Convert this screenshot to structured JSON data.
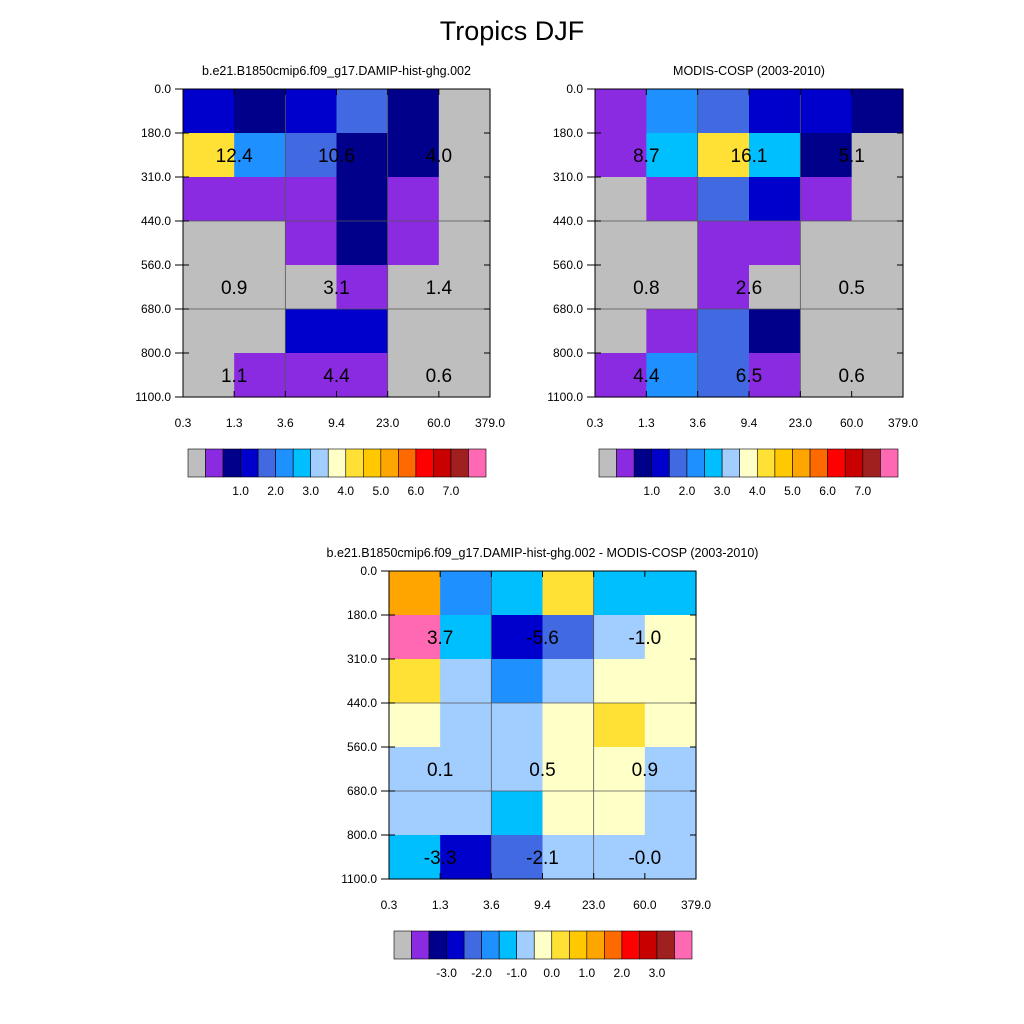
{
  "page": {
    "title": "Tropics DJF"
  },
  "colors": {
    "abs_colorbar": [
      "#bebebe",
      "#8a2be2",
      "#00008b",
      "#0000cd",
      "#4169e1",
      "#1e90ff",
      "#00bfff",
      "#a2cdff",
      "#ffffc8",
      "#ffe135",
      "#ffc800",
      "#ffa500",
      "#ff6a00",
      "#ff0000",
      "#c80000",
      "#a02020",
      "#ff69b4"
    ],
    "diff_colorbar": [
      "#bebebe",
      "#8a2be2",
      "#00008b",
      "#0000cd",
      "#4169e1",
      "#1e90ff",
      "#00bfff",
      "#a2cdff",
      "#ffffc8",
      "#ffe135",
      "#ffc800",
      "#ffa500",
      "#ff6a00",
      "#ff0000",
      "#c80000",
      "#a02020",
      "#ff69b4"
    ]
  },
  "chart_data": [
    {
      "type": "heatmap",
      "id": "model",
      "title": "b.e21.B1850cmip6.f09_g17.DAMIP-hist-ghg.002",
      "xlabel": "",
      "ylabel": "",
      "x_ticks": [
        "0.3",
        "1.3",
        "3.6",
        "9.4",
        "23.0",
        "60.0",
        "379.0"
      ],
      "y_ticks": [
        "0.0",
        "180.0",
        "310.0",
        "440.0",
        "560.0",
        "680.0",
        "800.0",
        "1100.0"
      ],
      "cell_colors": [
        [
          "#0000cd",
          "#00008b",
          "#0000cd",
          "#4169e1",
          "#00008b",
          "#bebebe"
        ],
        [
          "#ffe135",
          "#1e90ff",
          "#4169e1",
          "#00008b",
          "#00008b",
          "#bebebe"
        ],
        [
          "#8a2be2",
          "#8a2be2",
          "#8a2be2",
          "#00008b",
          "#8a2be2",
          "#bebebe"
        ],
        [
          "#bebebe",
          "#bebebe",
          "#8a2be2",
          "#00008b",
          "#8a2be2",
          "#bebebe"
        ],
        [
          "#bebebe",
          "#bebebe",
          "#bebebe",
          "#8a2be2",
          "#bebebe",
          "#bebebe"
        ],
        [
          "#bebebe",
          "#bebebe",
          "#0000cd",
          "#0000cd",
          "#bebebe",
          "#bebebe"
        ],
        [
          "#bebebe",
          "#8a2be2",
          "#8a2be2",
          "#8a2be2",
          "#bebebe",
          "#bebebe"
        ]
      ],
      "annotations": [
        {
          "text": "12.4",
          "col": 0,
          "row": 1
        },
        {
          "text": "10.6",
          "col": 1,
          "row": 1
        },
        {
          "text": "4.0",
          "col": 2,
          "row": 1
        },
        {
          "text": "0.9",
          "col": 0,
          "row": 4
        },
        {
          "text": "3.1",
          "col": 1,
          "row": 4
        },
        {
          "text": "1.4",
          "col": 2,
          "row": 4
        },
        {
          "text": "1.1",
          "col": 0,
          "row": 6
        },
        {
          "text": "4.4",
          "col": 1,
          "row": 6
        },
        {
          "text": "0.6",
          "col": 2,
          "row": 6
        }
      ],
      "colorbar_labels": [
        "1.0",
        "2.0",
        "3.0",
        "4.0",
        "5.0",
        "6.0",
        "7.0"
      ]
    },
    {
      "type": "heatmap",
      "id": "obs",
      "title": "MODIS-COSP (2003-2010)",
      "xlabel": "",
      "ylabel": "",
      "x_ticks": [
        "0.3",
        "1.3",
        "3.6",
        "9.4",
        "23.0",
        "60.0",
        "379.0"
      ],
      "y_ticks": [
        "0.0",
        "180.0",
        "310.0",
        "440.0",
        "560.0",
        "680.0",
        "800.0",
        "1100.0"
      ],
      "cell_colors": [
        [
          "#8a2be2",
          "#1e90ff",
          "#4169e1",
          "#0000cd",
          "#0000cd",
          "#00008b"
        ],
        [
          "#8a2be2",
          "#00bfff",
          "#ffe135",
          "#00bfff",
          "#00008b",
          "#bebebe"
        ],
        [
          "#bebebe",
          "#8a2be2",
          "#4169e1",
          "#0000cd",
          "#8a2be2",
          "#bebebe"
        ],
        [
          "#bebebe",
          "#bebebe",
          "#8a2be2",
          "#8a2be2",
          "#bebebe",
          "#bebebe"
        ],
        [
          "#bebebe",
          "#bebebe",
          "#8a2be2",
          "#bebebe",
          "#bebebe",
          "#bebebe"
        ],
        [
          "#bebebe",
          "#8a2be2",
          "#4169e1",
          "#00008b",
          "#bebebe",
          "#bebebe"
        ],
        [
          "#8a2be2",
          "#1e90ff",
          "#4169e1",
          "#8a2be2",
          "#bebebe",
          "#bebebe"
        ]
      ],
      "annotations": [
        {
          "text": "8.7",
          "col": 0,
          "row": 1
        },
        {
          "text": "16.1",
          "col": 1,
          "row": 1
        },
        {
          "text": "5.1",
          "col": 2,
          "row": 1
        },
        {
          "text": "0.8",
          "col": 0,
          "row": 4
        },
        {
          "text": "2.6",
          "col": 1,
          "row": 4
        },
        {
          "text": "0.5",
          "col": 2,
          "row": 4
        },
        {
          "text": "4.4",
          "col": 0,
          "row": 6
        },
        {
          "text": "6.5",
          "col": 1,
          "row": 6
        },
        {
          "text": "0.6",
          "col": 2,
          "row": 6
        }
      ],
      "colorbar_labels": [
        "1.0",
        "2.0",
        "3.0",
        "4.0",
        "5.0",
        "6.0",
        "7.0"
      ]
    },
    {
      "type": "heatmap",
      "id": "diff",
      "title": "b.e21.B1850cmip6.f09_g17.DAMIP-hist-ghg.002 - MODIS-COSP (2003-2010)",
      "xlabel": "",
      "ylabel": "",
      "x_ticks": [
        "0.3",
        "1.3",
        "3.6",
        "9.4",
        "23.0",
        "60.0",
        "379.0"
      ],
      "y_ticks": [
        "0.0",
        "180.0",
        "310.0",
        "440.0",
        "560.0",
        "680.0",
        "800.0",
        "1100.0"
      ],
      "cell_colors": [
        [
          "#ffa500",
          "#1e90ff",
          "#00bfff",
          "#ffe135",
          "#00bfff",
          "#00bfff"
        ],
        [
          "#ff69b4",
          "#00bfff",
          "#0000cd",
          "#4169e1",
          "#a2cdff",
          "#ffffc8"
        ],
        [
          "#ffe135",
          "#a2cdff",
          "#1e90ff",
          "#a2cdff",
          "#ffffc8",
          "#ffffc8"
        ],
        [
          "#ffffc8",
          "#a2cdff",
          "#a2cdff",
          "#ffffc8",
          "#ffe135",
          "#ffffc8"
        ],
        [
          "#a2cdff",
          "#a2cdff",
          "#a2cdff",
          "#ffffc8",
          "#ffffc8",
          "#a2cdff"
        ],
        [
          "#a2cdff",
          "#a2cdff",
          "#00bfff",
          "#ffffc8",
          "#ffffc8",
          "#a2cdff"
        ],
        [
          "#00bfff",
          "#0000cd",
          "#4169e1",
          "#a2cdff",
          "#a2cdff",
          "#a2cdff"
        ]
      ],
      "annotations": [
        {
          "text": "3.7",
          "col": 0,
          "row": 1
        },
        {
          "text": "-5.6",
          "col": 1,
          "row": 1
        },
        {
          "text": "-1.0",
          "col": 2,
          "row": 1
        },
        {
          "text": "0.1",
          "col": 0,
          "row": 4
        },
        {
          "text": "0.5",
          "col": 1,
          "row": 4
        },
        {
          "text": "0.9",
          "col": 2,
          "row": 4
        },
        {
          "text": "-3.3",
          "col": 0,
          "row": 6
        },
        {
          "text": "-2.1",
          "col": 1,
          "row": 6
        },
        {
          "text": "-0.0",
          "col": 2,
          "row": 6
        }
      ],
      "colorbar_labels": [
        "-3.0",
        "-2.0",
        "-1.0",
        "0.0",
        "1.0",
        "2.0",
        "3.0"
      ]
    }
  ]
}
